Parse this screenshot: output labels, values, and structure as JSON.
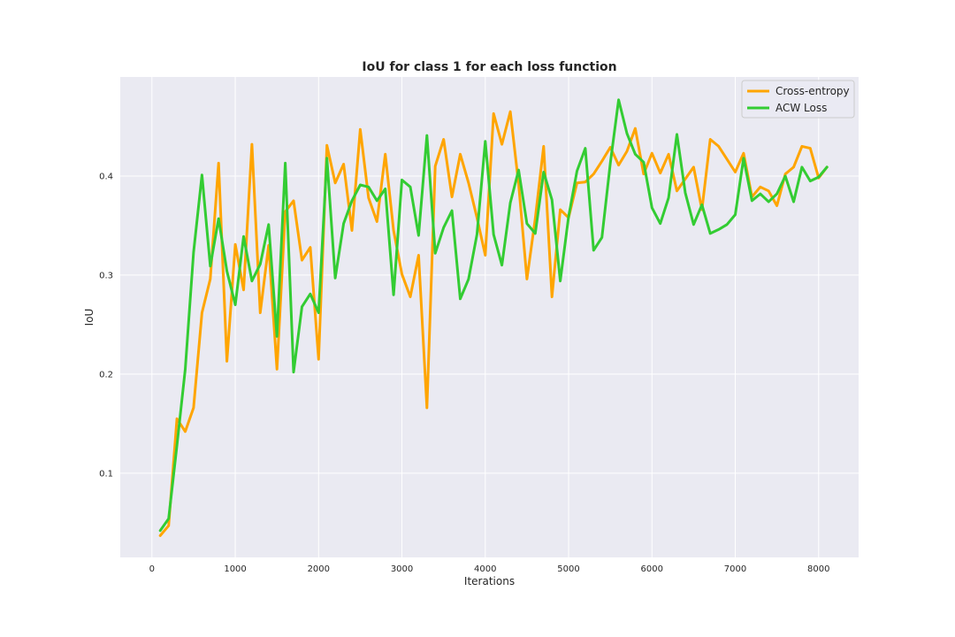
{
  "chart_data": {
    "type": "line",
    "title": "IoU for class 1 for each loss function",
    "xlabel": "Iterations",
    "ylabel": "IoU",
    "xlim": [
      -380,
      8480
    ],
    "ylim": [
      0.015,
      0.5
    ],
    "xticks": [
      0,
      1000,
      2000,
      3000,
      4000,
      5000,
      6000,
      7000,
      8000
    ],
    "yticks": [
      0.1,
      0.2,
      0.3,
      0.4
    ],
    "grid": true,
    "legend_position": "top-right",
    "x": [
      100,
      200,
      300,
      400,
      500,
      600,
      700,
      800,
      900,
      1000,
      1100,
      1200,
      1300,
      1400,
      1500,
      1600,
      1700,
      1800,
      1900,
      2000,
      2100,
      2200,
      2300,
      2400,
      2500,
      2600,
      2700,
      2800,
      2900,
      3000,
      3100,
      3200,
      3300,
      3400,
      3500,
      3600,
      3700,
      3800,
      3900,
      4000,
      4100,
      4200,
      4300,
      4400,
      4500,
      4600,
      4700,
      4800,
      4900,
      5000,
      5100,
      5200,
      5300,
      5400,
      5500,
      5600,
      5700,
      5800,
      5900,
      6000,
      6100,
      6200,
      6300,
      6400,
      6500,
      6600,
      6700,
      6800,
      6900,
      7000,
      7100,
      7200,
      7300,
      7400,
      7500,
      7600,
      7700,
      7800,
      7900,
      8000,
      8100
    ],
    "series": [
      {
        "name": "Cross-entropy",
        "color": "#FFA500",
        "values": [
          0.037,
          0.047,
          0.155,
          0.142,
          0.166,
          0.262,
          0.296,
          0.413,
          0.213,
          0.331,
          0.285,
          0.432,
          0.262,
          0.33,
          0.205,
          0.364,
          0.375,
          0.315,
          0.328,
          0.215,
          0.431,
          0.393,
          0.412,
          0.345,
          0.447,
          0.378,
          0.354,
          0.422,
          0.345,
          0.301,
          0.278,
          0.32,
          0.166,
          0.41,
          0.437,
          0.379,
          0.422,
          0.393,
          0.358,
          0.32,
          0.463,
          0.432,
          0.465,
          0.392,
          0.296,
          0.357,
          0.43,
          0.278,
          0.366,
          0.358,
          0.393,
          0.394,
          0.402,
          0.415,
          0.429,
          0.411,
          0.425,
          0.448,
          0.402,
          0.423,
          0.403,
          0.422,
          0.385,
          0.397,
          0.409,
          0.366,
          0.437,
          0.43,
          0.417,
          0.404,
          0.423,
          0.379,
          0.389,
          0.385,
          0.37,
          0.402,
          0.409,
          0.43,
          0.428,
          0.398,
          0.409
        ]
      },
      {
        "name": "ACW Loss",
        "color": "#33CC33",
        "values": [
          0.042,
          0.054,
          0.128,
          0.205,
          0.323,
          0.401,
          0.309,
          0.357,
          0.304,
          0.27,
          0.339,
          0.294,
          0.311,
          0.351,
          0.238,
          0.413,
          0.202,
          0.268,
          0.281,
          0.262,
          0.418,
          0.297,
          0.352,
          0.375,
          0.391,
          0.389,
          0.375,
          0.387,
          0.28,
          0.396,
          0.389,
          0.34,
          0.441,
          0.322,
          0.348,
          0.365,
          0.276,
          0.296,
          0.341,
          0.435,
          0.341,
          0.31,
          0.373,
          0.406,
          0.352,
          0.342,
          0.404,
          0.376,
          0.294,
          0.359,
          0.405,
          0.428,
          0.325,
          0.338,
          0.413,
          0.477,
          0.443,
          0.422,
          0.414,
          0.368,
          0.352,
          0.378,
          0.442,
          0.383,
          0.351,
          0.371,
          0.342,
          0.346,
          0.351,
          0.361,
          0.418,
          0.375,
          0.382,
          0.374,
          0.382,
          0.4,
          0.374,
          0.409,
          0.395,
          0.399,
          0.409
        ]
      }
    ]
  }
}
